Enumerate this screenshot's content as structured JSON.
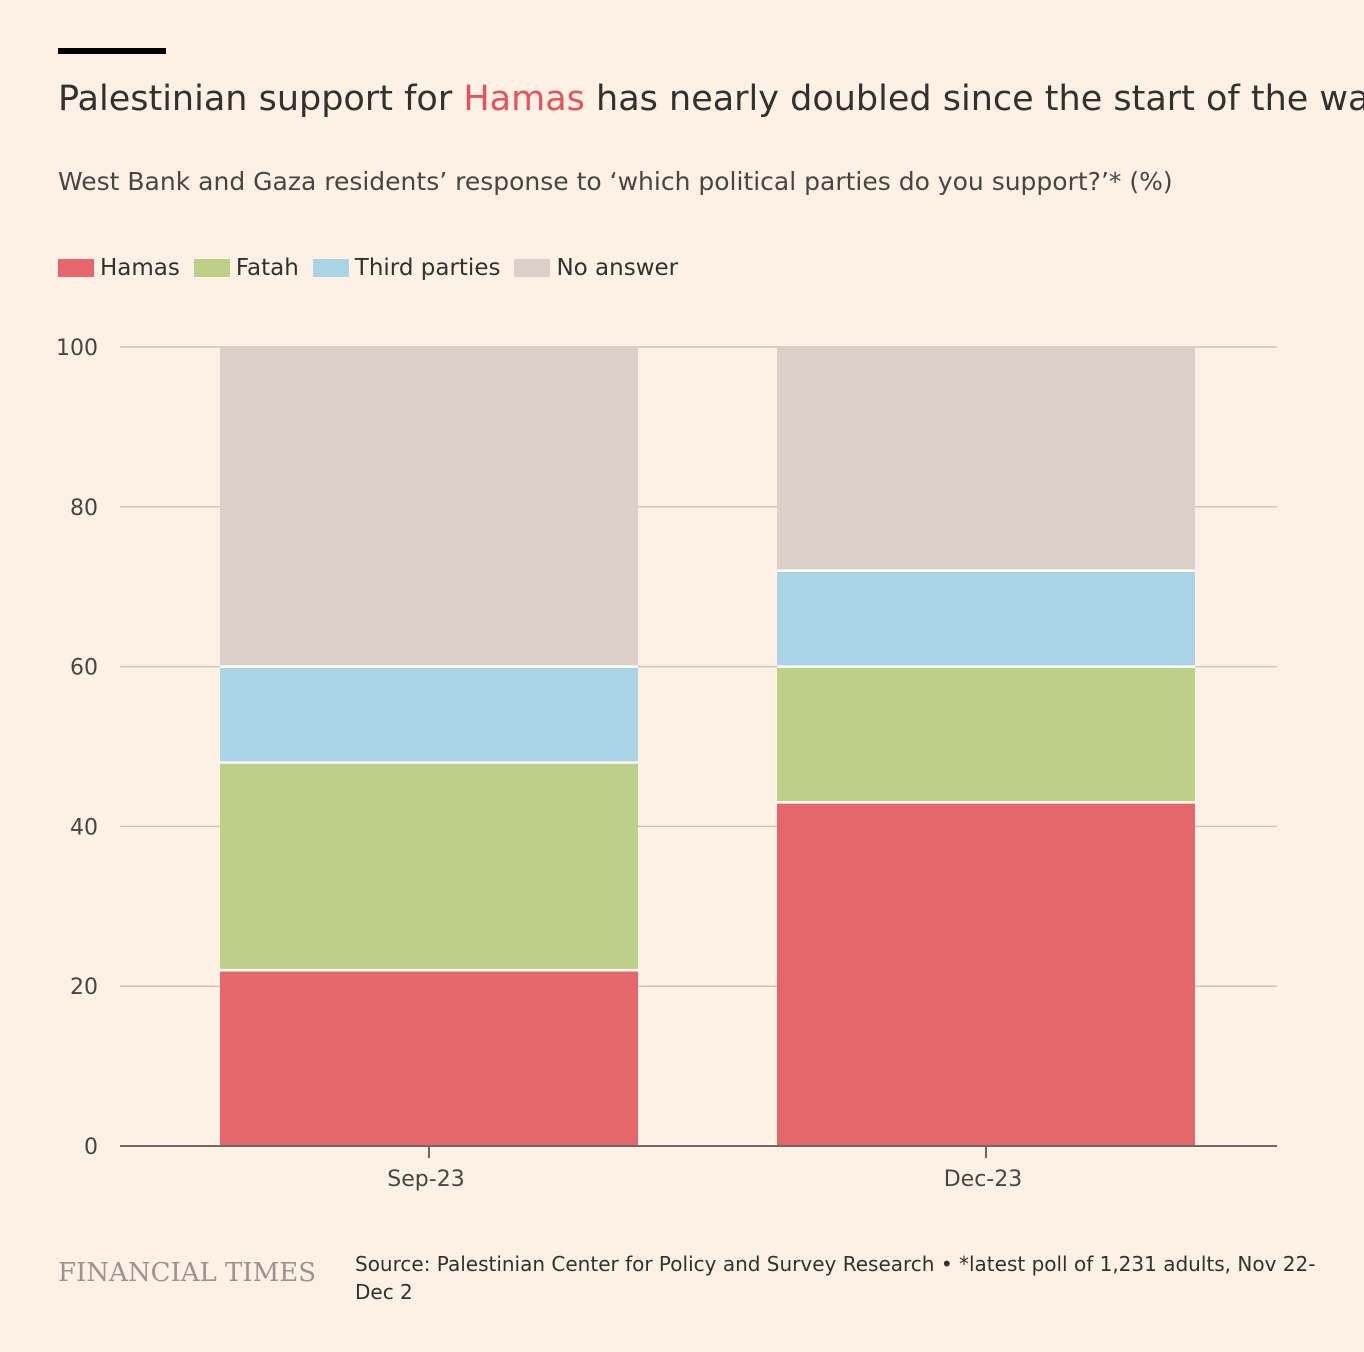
{
  "header": {
    "title_before": "Palestinian support for ",
    "title_highlight": "Hamas",
    "title_after": " has nearly doubled since the start of the war",
    "subtitle": "West Bank and Gaza residents’ response to ‘which political parties do you support?’* (%)"
  },
  "legend": [
    {
      "label": "Hamas",
      "color": "#e5676c"
    },
    {
      "label": "Fatah",
      "color": "#bdd087"
    },
    {
      "label": "Third parties",
      "color": "#aad3e5"
    },
    {
      "label": "No answer",
      "color": "#dad0c7"
    }
  ],
  "chart_data": {
    "type": "bar",
    "stacked": true,
    "categories": [
      "Sep-23",
      "Dec-23"
    ],
    "series": [
      {
        "name": "Hamas",
        "values": [
          22,
          43
        ],
        "color": "#e5676c"
      },
      {
        "name": "Fatah",
        "values": [
          26,
          17
        ],
        "color": "#bdd087"
      },
      {
        "name": "Third parties",
        "values": [
          12,
          12
        ],
        "color": "#aad3e5"
      },
      {
        "name": "No answer",
        "values": [
          40,
          28
        ],
        "color": "#dad0c7"
      }
    ],
    "ylim": [
      0,
      100
    ],
    "yticks": [
      0,
      20,
      40,
      60,
      80,
      100
    ],
    "grid": true,
    "legend_position": "top-left"
  },
  "footer": {
    "brand": "FINANCIAL TIMES",
    "source": "Source: Palestinian Center for Policy and Survey Research • *latest poll of 1,231 adults, Nov 22-Dec 2"
  }
}
